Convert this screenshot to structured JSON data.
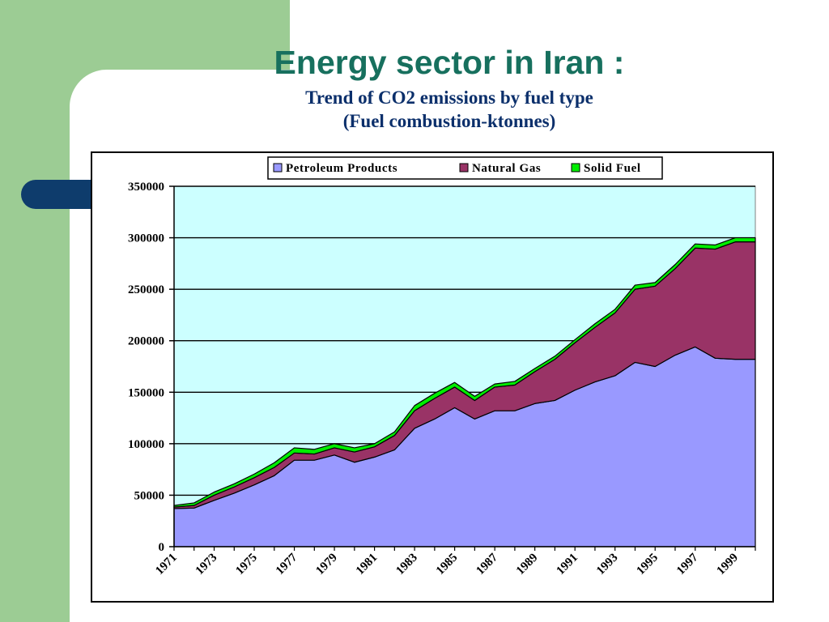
{
  "slide": {
    "title": "Energy sector in Iran :",
    "subtitle_line1": "Trend of CO2 emissions by fuel type",
    "subtitle_line2": "(Fuel combustion-ktonnes)"
  },
  "colors": {
    "petroleum": "#9999ff",
    "natural_gas": "#993366",
    "solid_fuel": "#00ee00",
    "plot_bg": "#ccffff",
    "title": "#17705e",
    "subtitle": "#0b2f6b"
  },
  "chart_data": {
    "type": "area",
    "stacked": true,
    "title": "",
    "xlabel": "",
    "ylabel": "",
    "ylim": [
      0,
      350000
    ],
    "yticks": [
      0,
      50000,
      100000,
      150000,
      200000,
      250000,
      300000,
      350000
    ],
    "yticklabels": [
      "0",
      "50000",
      "100000",
      "150000",
      "200000",
      "250000",
      "300000",
      "350000"
    ],
    "x": [
      1971,
      1972,
      1973,
      1974,
      1975,
      1976,
      1977,
      1978,
      1979,
      1980,
      1981,
      1982,
      1983,
      1984,
      1985,
      1986,
      1987,
      1988,
      1989,
      1990,
      1991,
      1992,
      1993,
      1994,
      1995,
      1996,
      1997,
      1998,
      1999,
      2000
    ],
    "xticklabels": [
      "1971",
      "1973",
      "1975",
      "1977",
      "1979",
      "1981",
      "1983",
      "1985",
      "1987",
      "1989",
      "1991",
      "1993",
      "1995",
      "1997",
      "1999"
    ],
    "legend_position": "top",
    "grid": "horizontal",
    "series": [
      {
        "name": "Petroleum Products",
        "color": "#9999ff",
        "values": [
          37000,
          37500,
          45000,
          52000,
          60000,
          69000,
          84000,
          84000,
          89000,
          82000,
          87000,
          94000,
          115000,
          124000,
          135000,
          124000,
          132000,
          132000,
          139000,
          142000,
          152000,
          160000,
          166000,
          179000,
          175000,
          186000,
          194000,
          183000,
          182000,
          182000
        ]
      },
      {
        "name": "Natural Gas",
        "color": "#993366",
        "values": [
          1500,
          2500,
          5000,
          6000,
          7000,
          8000,
          7000,
          6000,
          7000,
          10000,
          10000,
          14000,
          17000,
          20000,
          20000,
          18000,
          23000,
          25000,
          31000,
          40000,
          46000,
          53000,
          61000,
          71000,
          78000,
          84000,
          96000,
          106000,
          114000,
          114000
        ]
      },
      {
        "name": "Solid Fuel",
        "color": "#00ee00",
        "values": [
          1500,
          2500,
          3000,
          3000,
          3500,
          4500,
          5000,
          4500,
          4000,
          4000,
          3000,
          3500,
          5000,
          5000,
          4500,
          4000,
          3000,
          3500,
          3000,
          3000,
          3000,
          3500,
          3500,
          4000,
          3500,
          4000,
          4000,
          4000,
          4000,
          4000
        ]
      }
    ]
  }
}
